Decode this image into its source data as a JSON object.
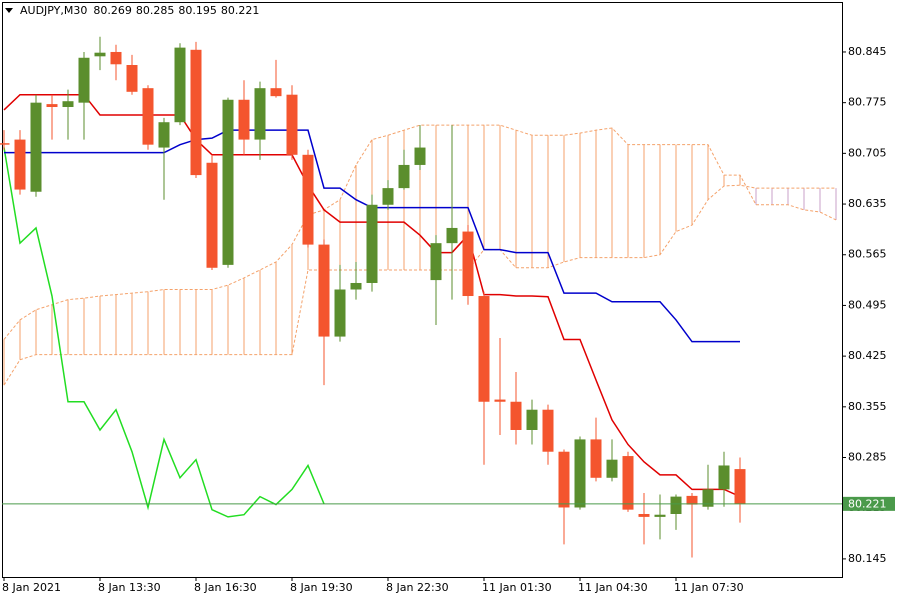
{
  "chart_data": {
    "type": "candlestick",
    "symbol": "AUDJPY,M30",
    "header_ohlc": [
      80.269,
      80.285,
      80.195,
      80.221
    ],
    "categories": [
      "8 Jan 2021",
      null,
      null,
      null,
      null,
      null,
      "8 Jan 13:30",
      null,
      null,
      null,
      null,
      null,
      "8 Jan 16:30",
      null,
      null,
      null,
      null,
      null,
      "8 Jan 19:30",
      null,
      null,
      null,
      null,
      null,
      "8 Jan 22:30",
      null,
      null,
      null,
      null,
      null,
      "11 Jan 01:30",
      null,
      null,
      null,
      null,
      null,
      "11 Jan 04:30",
      null,
      null,
      null,
      null,
      null,
      "11 Jan 07:30",
      null,
      null,
      null,
      null,
      null,
      null,
      null,
      null,
      null,
      null
    ],
    "open": [
      80.719,
      80.724,
      80.652,
      80.773,
      80.769,
      80.775,
      80.839,
      80.845,
      80.827,
      80.795,
      80.713,
      80.748,
      80.848,
      80.692,
      80.551,
      80.779,
      80.724,
      80.795,
      80.786,
      80.703,
      80.579,
      80.452,
      80.517,
      80.526,
      80.634,
      80.657,
      80.689,
      80.53,
      80.581,
      80.597,
      80.508,
      80.365,
      80.362,
      80.323,
      80.351,
      80.293,
      80.216,
      80.31,
      80.257,
      80.287,
      80.207,
      80.203,
      80.207,
      80.232,
      80.217,
      80.241,
      80.269,
      null,
      null,
      null,
      null,
      null,
      null
    ],
    "high": [
      80.737,
      80.737,
      80.786,
      80.786,
      80.793,
      80.845,
      80.866,
      80.855,
      80.841,
      80.799,
      80.754,
      80.857,
      80.859,
      80.703,
      80.782,
      80.806,
      80.804,
      80.834,
      80.799,
      80.71,
      80.586,
      80.551,
      80.555,
      80.648,
      80.668,
      80.71,
      80.744,
      80.592,
      80.744,
      80.606,
      80.514,
      80.45,
      80.403,
      80.365,
      80.358,
      80.296,
      80.314,
      80.34,
      80.31,
      80.293,
      80.236,
      80.234,
      80.234,
      80.236,
      80.275,
      80.293,
      80.285,
      null,
      null,
      null,
      null,
      null,
      null
    ],
    "low": [
      80.71,
      80.648,
      80.645,
      80.724,
      80.724,
      80.724,
      80.82,
      80.806,
      80.786,
      80.71,
      80.641,
      80.744,
      80.671,
      80.544,
      80.547,
      80.703,
      80.696,
      80.782,
      80.696,
      80.575,
      80.385,
      80.445,
      80.503,
      80.514,
      80.627,
      80.655,
      80.682,
      80.468,
      80.503,
      80.496,
      80.275,
      80.316,
      80.303,
      80.303,
      80.275,
      80.165,
      80.213,
      80.252,
      80.252,
      80.21,
      80.165,
      80.172,
      80.185,
      80.147,
      80.213,
      80.217,
      80.195,
      null,
      null,
      null,
      null,
      null,
      null
    ],
    "close": [
      80.717,
      80.655,
      80.775,
      80.769,
      80.777,
      80.837,
      80.844,
      80.828,
      80.79,
      80.717,
      80.748,
      80.851,
      80.675,
      80.547,
      80.779,
      80.724,
      80.795,
      80.784,
      80.703,
      80.579,
      80.452,
      80.517,
      80.526,
      80.634,
      80.657,
      80.689,
      80.713,
      80.581,
      80.602,
      80.508,
      80.362,
      80.362,
      80.323,
      80.351,
      80.293,
      80.216,
      80.31,
      80.257,
      80.282,
      80.213,
      80.203,
      80.206,
      80.231,
      80.22,
      80.241,
      80.274,
      80.221,
      null,
      null,
      null,
      null,
      null,
      null
    ],
    "bull_color": "#5b8e2d",
    "bear_color": "#f4552e",
    "lines": [
      {
        "color": "#22dd22",
        "values": [
          80.713,
          80.581,
          80.602,
          80.508,
          80.362,
          80.362,
          80.323,
          80.351,
          80.293,
          80.216,
          80.31,
          80.257,
          80.282,
          80.213,
          80.203,
          80.206,
          80.231,
          80.22,
          80.241,
          80.274,
          80.221,
          null,
          null,
          null,
          null,
          null,
          null,
          null,
          null,
          null,
          null,
          null,
          null,
          null,
          null,
          null,
          null,
          null,
          null,
          null,
          null,
          null,
          null,
          null,
          null,
          null,
          null,
          null,
          null,
          null,
          null,
          null,
          null
        ]
      },
      {
        "color": "#0000cc",
        "values": [
          80.706,
          80.706,
          80.706,
          80.706,
          80.706,
          80.706,
          80.706,
          80.706,
          80.706,
          80.706,
          80.706,
          80.717,
          80.724,
          80.726,
          80.737,
          80.737,
          80.737,
          80.737,
          80.737,
          80.737,
          80.657,
          80.657,
          80.641,
          80.63,
          80.63,
          80.63,
          80.63,
          80.63,
          80.63,
          80.63,
          80.572,
          80.572,
          80.568,
          80.568,
          80.568,
          80.512,
          80.512,
          80.512,
          80.5,
          80.5,
          80.5,
          80.5,
          80.475,
          80.445,
          80.445,
          80.445,
          80.445,
          null,
          null,
          null,
          null,
          null,
          null
        ]
      },
      {
        "color": "#e00000",
        "values": [
          80.765,
          80.786,
          80.786,
          80.786,
          80.786,
          80.786,
          80.758,
          80.758,
          80.758,
          80.758,
          80.758,
          80.758,
          80.724,
          80.703,
          80.703,
          80.703,
          80.703,
          80.703,
          80.703,
          80.661,
          80.627,
          80.61,
          80.61,
          80.61,
          80.61,
          80.61,
          80.592,
          80.568,
          80.568,
          80.592,
          80.51,
          80.51,
          80.508,
          80.508,
          80.507,
          80.448,
          80.448,
          80.392,
          80.337,
          80.303,
          80.279,
          80.261,
          80.261,
          80.241,
          80.241,
          80.241,
          80.231,
          null,
          null,
          null,
          null,
          null,
          null
        ]
      }
    ],
    "cloud": {
      "span_a": [
        80.448,
        80.475,
        80.489,
        80.496,
        80.503,
        80.505,
        80.508,
        80.51,
        80.512,
        80.514,
        80.517,
        80.517,
        80.517,
        80.517,
        80.523,
        80.533,
        80.544,
        80.555,
        80.579,
        80.62,
        80.627,
        80.641,
        80.689,
        80.724,
        80.73,
        80.737,
        80.744,
        80.744,
        80.744,
        80.744,
        80.744,
        80.744,
        80.737,
        80.73,
        80.73,
        80.73,
        80.733,
        80.737,
        80.74,
        80.717,
        80.717,
        80.717,
        80.717,
        80.717,
        80.717,
        80.675,
        80.675,
        80.634,
        80.634,
        80.634,
        80.627,
        80.624,
        80.613
      ],
      "span_b": [
        80.385,
        80.42,
        80.427,
        80.427,
        80.427,
        80.427,
        80.427,
        80.427,
        80.427,
        80.427,
        80.427,
        80.427,
        80.427,
        80.427,
        80.427,
        80.427,
        80.427,
        80.427,
        80.427,
        80.544,
        80.544,
        80.544,
        80.544,
        80.544,
        80.544,
        80.544,
        80.544,
        80.544,
        80.544,
        80.544,
        80.572,
        80.572,
        80.547,
        80.547,
        80.547,
        80.555,
        80.561,
        80.561,
        80.561,
        80.561,
        80.561,
        80.565,
        80.597,
        80.606,
        80.641,
        80.66,
        80.661,
        80.657,
        80.657,
        80.657,
        80.657,
        80.657,
        80.657
      ],
      "bull_color": "#f4a26b",
      "bear_color": "#c8a2c8"
    },
    "last_price": 80.221,
    "last_price_color": "#4a9a4a",
    "ylim": [
      80.12,
      80.914
    ],
    "yticks": [
      80.145,
      80.215,
      80.285,
      80.355,
      80.425,
      80.495,
      80.565,
      80.635,
      80.705,
      80.775,
      80.845
    ]
  }
}
